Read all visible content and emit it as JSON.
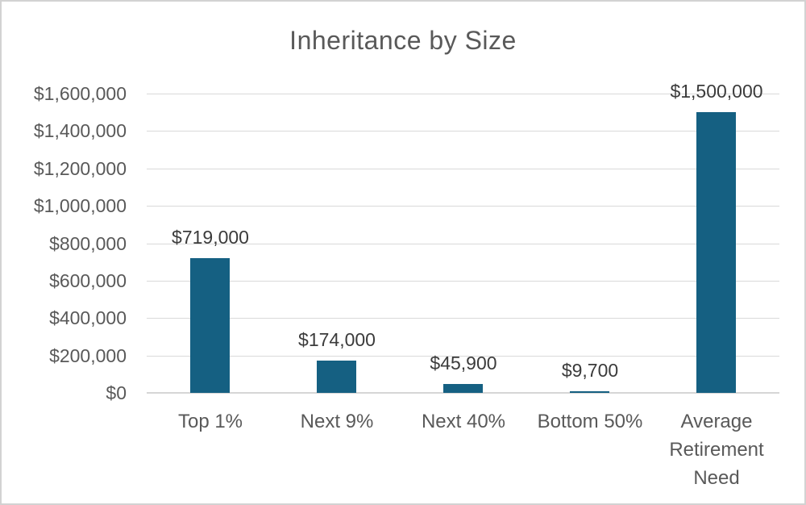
{
  "chart_data": {
    "type": "bar",
    "title": "Inheritance by Size",
    "categories": [
      "Top 1%",
      "Next 9%",
      "Next 40%",
      "Bottom 50%",
      "Average Retirement Need"
    ],
    "values": [
      719000,
      174000,
      45900,
      9700,
      1500000
    ],
    "data_labels": [
      "$719,000",
      "$174,000",
      "$45,900",
      "$9,700",
      "$1,500,000"
    ],
    "y_ticks": [
      "$0",
      "$200,000",
      "$400,000",
      "$600,000",
      "$800,000",
      "$1,000,000",
      "$1,200,000",
      "$1,400,000",
      "$1,600,000"
    ],
    "y_tick_step": 200000,
    "ylim": [
      0,
      1600000
    ],
    "xlabel": "",
    "ylabel": "",
    "grid": true,
    "legend": "none",
    "colors": {
      "bar": "#156082",
      "gridline": "#d9d9d9",
      "axis_line": "#d6d6d6",
      "title_text": "#595959",
      "axis_text": "#595959",
      "data_label_text": "#3b3b3b",
      "border": "#d2d2d2",
      "background": "#ffffff"
    }
  }
}
